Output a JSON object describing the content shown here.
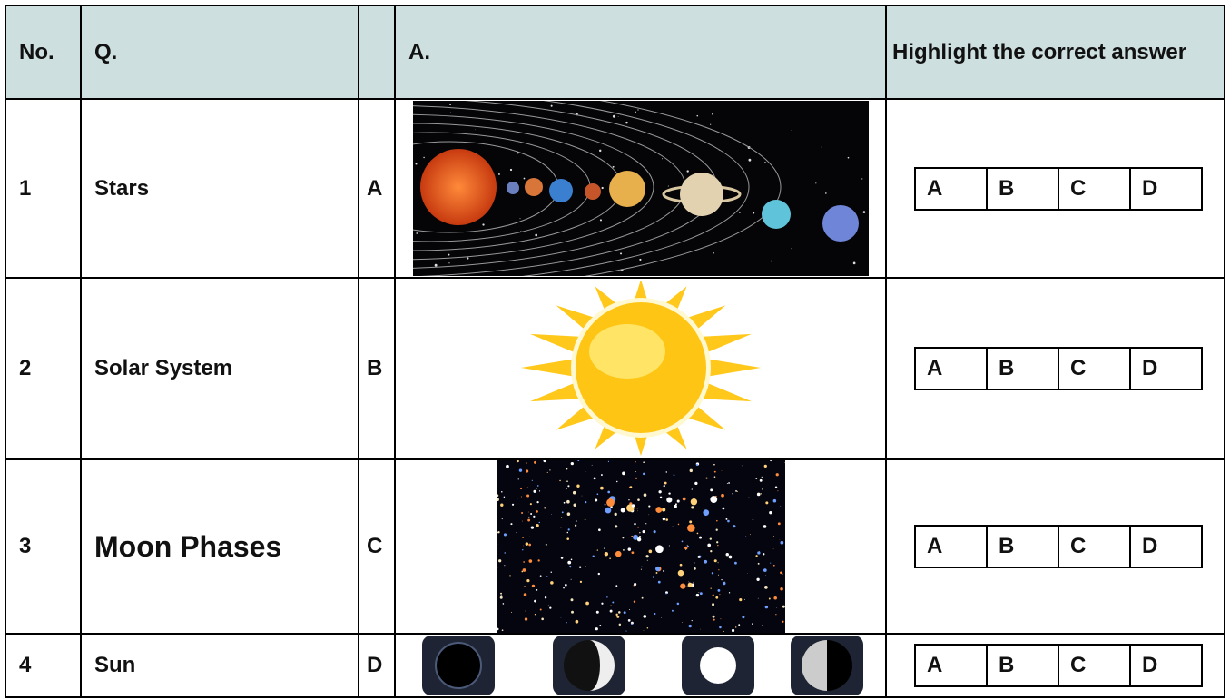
{
  "table": {
    "headers": [
      "No.",
      "Q.",
      "A.",
      "Highlight the correct answer"
    ],
    "rows": [
      {
        "no": "1",
        "question": "Stars",
        "letter": "A",
        "options": [
          "A",
          "B",
          "C",
          "D"
        ]
      },
      {
        "no": "2",
        "question": "Solar System",
        "letter": "B",
        "options": [
          "A",
          "B",
          "C",
          "D"
        ]
      },
      {
        "no": "3",
        "question": "Moon Phases",
        "letter": "C",
        "options": [
          "A",
          "B",
          "C",
          "D"
        ]
      },
      {
        "no": "4",
        "question": "Sun",
        "letter": "D",
        "options": [
          "A",
          "B",
          "C",
          "D"
        ]
      }
    ]
  }
}
